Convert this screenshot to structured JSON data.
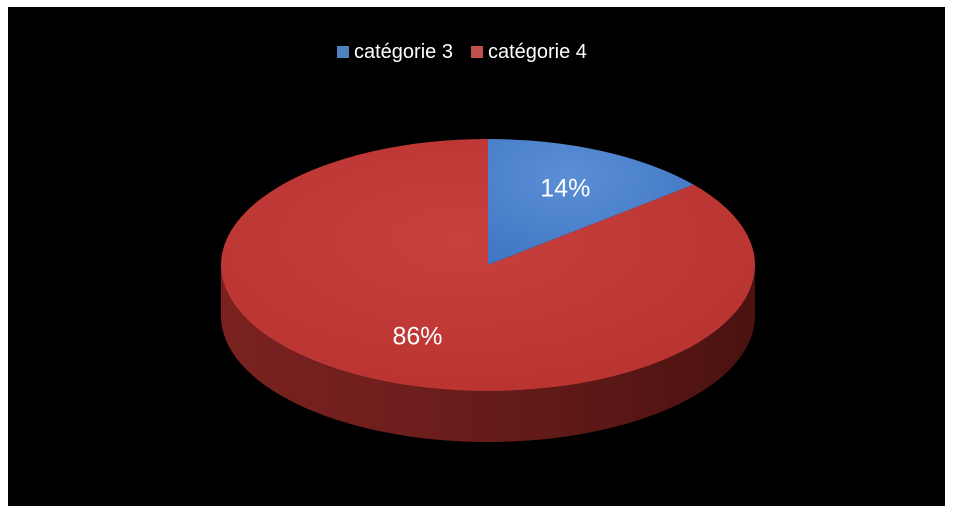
{
  "chart_data": {
    "type": "pie",
    "style": "3d",
    "legend_position": "top",
    "categories": [
      "catégorie 3",
      "catégorie 4"
    ],
    "values": [
      14,
      86
    ],
    "value_unit": "%",
    "data_labels": [
      "14%",
      "86%"
    ],
    "colors": [
      "#4f81bd",
      "#c0504d"
    ],
    "background": "#000000"
  }
}
